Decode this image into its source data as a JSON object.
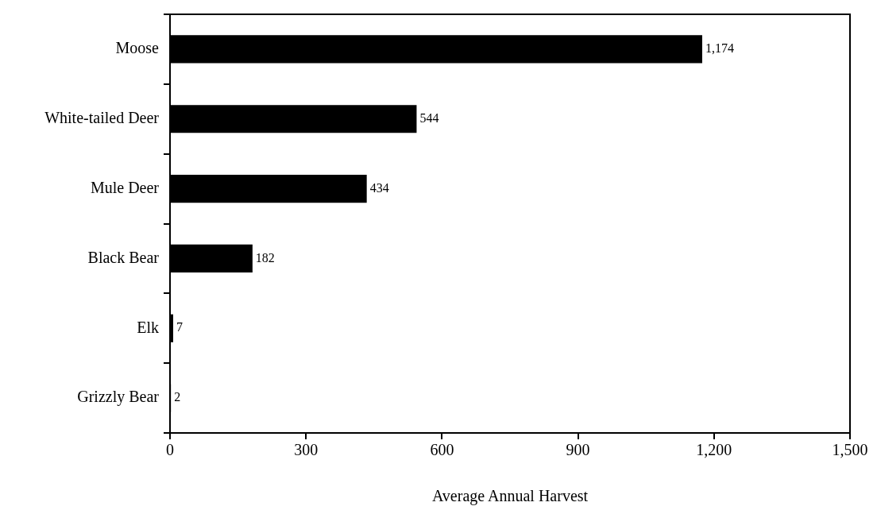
{
  "chart_data": {
    "type": "bar",
    "orientation": "horizontal",
    "xlabel": "Average Annual Harvest",
    "categories": [
      "Moose",
      "White-tailed Deer",
      "Mule Deer",
      "Black Bear",
      "Elk",
      "Grizzly Bear"
    ],
    "values": [
      1174,
      544,
      434,
      182,
      7,
      2
    ],
    "value_labels": [
      "1,174",
      "544",
      "434",
      "182",
      "7",
      "2"
    ],
    "color": "#000000",
    "xlim": [
      0,
      1500
    ],
    "xticks": [
      {
        "value": 0,
        "label": "0"
      },
      {
        "value": 300,
        "label": "300"
      },
      {
        "value": 600,
        "label": "600"
      },
      {
        "value": 900,
        "label": "900"
      },
      {
        "value": 1200,
        "label": "1,200"
      },
      {
        "value": 1500,
        "label": "1,500"
      }
    ],
    "grid": false,
    "legend": false
  }
}
